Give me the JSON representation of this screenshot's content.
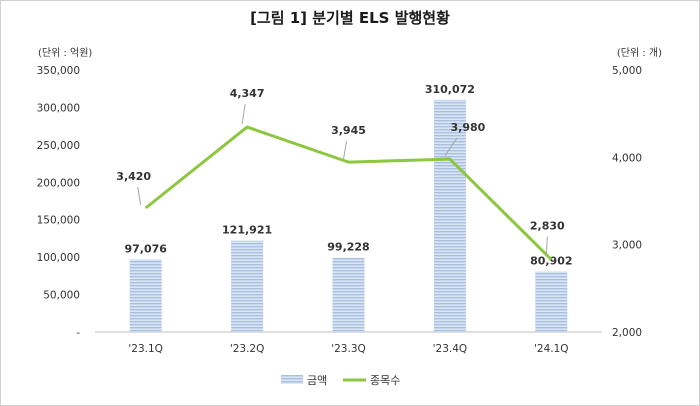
{
  "chart_data": {
    "type": "bar",
    "title": "[그림 1] 분기별 ELS 발행현황",
    "left_axis_unit": "(단위 : 억원)",
    "right_axis_unit": "(단위 : 개)",
    "categories": [
      "'23.1Q",
      "'23.2Q",
      "'23.3Q",
      "'23.4Q",
      "'24.1Q"
    ],
    "left_ylim": [
      0,
      350000
    ],
    "left_ticks": [
      0,
      50000,
      100000,
      150000,
      200000,
      250000,
      300000,
      350000
    ],
    "left_tick_labels": [
      "-",
      "50,000",
      "100,000",
      "150,000",
      "200,000",
      "250,000",
      "300,000",
      "350,000"
    ],
    "right_ylim": [
      2000,
      5000
    ],
    "right_ticks": [
      2000,
      3000,
      4000,
      5000
    ],
    "right_tick_labels": [
      "2,000",
      "3,000",
      "4,000",
      "5,000"
    ],
    "series": [
      {
        "name": "금액",
        "type": "bar",
        "axis": "left",
        "color": "#b8cbe6",
        "values": [
          97076,
          121921,
          99228,
          310072,
          80902
        ],
        "labels": [
          "97,076",
          "121,921",
          "99,228",
          "310,072",
          "80,902"
        ]
      },
      {
        "name": "종목수",
        "type": "line",
        "axis": "right",
        "color": "#8dc63f",
        "values": [
          3420,
          4347,
          3945,
          3980,
          2830
        ],
        "labels": [
          "3,420",
          "4,347",
          "3,945",
          "3,980",
          "2,830"
        ]
      }
    ],
    "grid": false,
    "legend": "bottom-center"
  }
}
